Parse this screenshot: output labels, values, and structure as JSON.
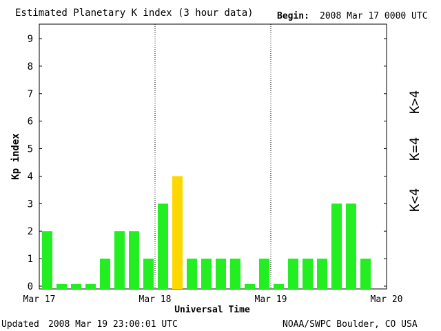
{
  "header": {
    "title": "Estimated Planetary K index (3 hour data)",
    "begin_label": "Begin:",
    "begin_value": "2008 Mar 17 0000 UTC"
  },
  "footer": {
    "updated_label": "Updated",
    "updated_value": "2008 Mar 19 23:00:01 UTC",
    "source": "NOAA/SWPC Boulder, CO USA"
  },
  "legend": {
    "above": "K>4",
    "equal": "K=4",
    "below": "K<4"
  },
  "colors": {
    "below": "#22ee22",
    "equal": "#ffd700",
    "above": "#ff2a00",
    "axis": "#000000"
  },
  "chart_data": {
    "type": "bar",
    "title": "Estimated Planetary K index (3 hour data)",
    "xlabel": "Universal Time",
    "ylabel": "Kp index",
    "ylim": [
      0,
      9
    ],
    "yticks": [
      "0",
      "1",
      "2",
      "3",
      "4",
      "5",
      "6",
      "7",
      "8",
      "9"
    ],
    "xticks": [
      "Mar 17",
      "Mar 18",
      "Mar 19",
      "Mar 20"
    ],
    "day_dividers": [
      "Mar 18",
      "Mar 19"
    ],
    "interval_hours": 3,
    "values": [
      2,
      0,
      0,
      0,
      1,
      2,
      2,
      1,
      3,
      4,
      1,
      1,
      1,
      1,
      0,
      1,
      0,
      1,
      1,
      1,
      3,
      3,
      1
    ]
  }
}
